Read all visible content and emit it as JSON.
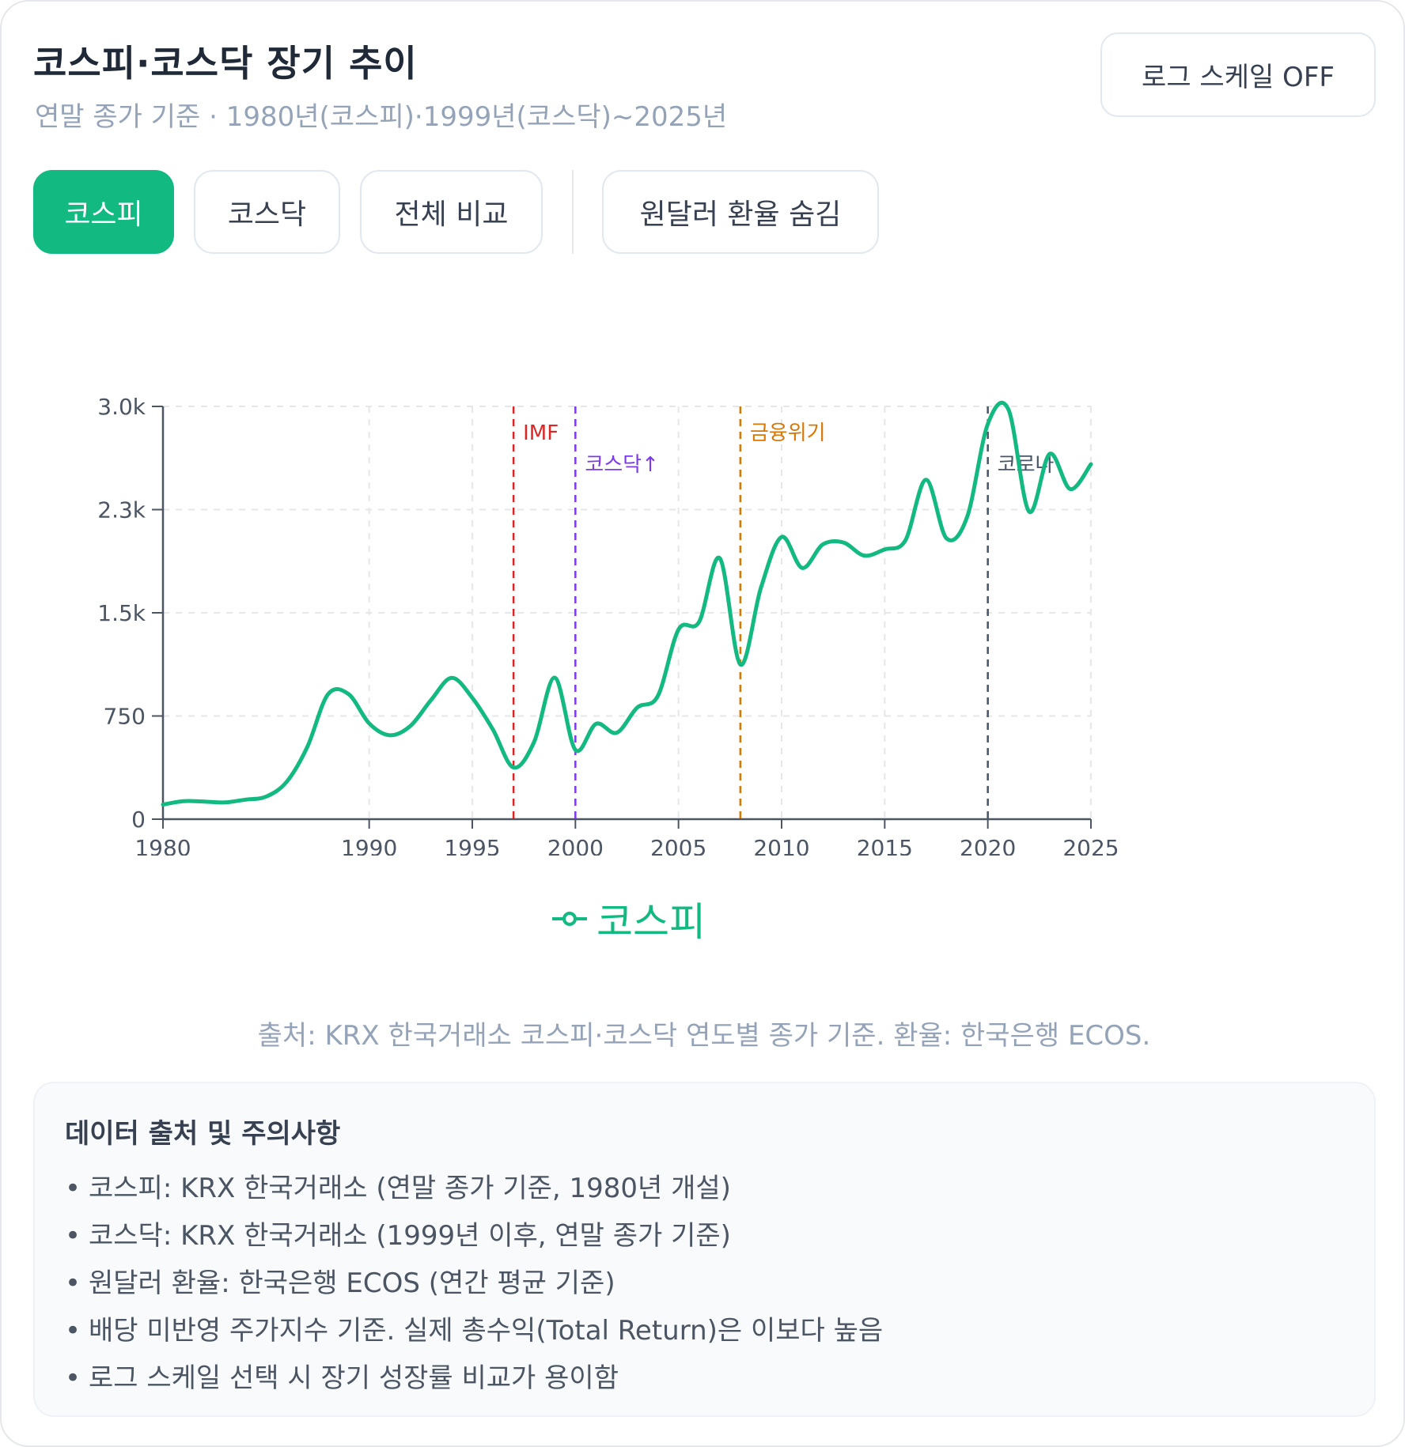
{
  "header": {
    "title": "코스피·코스닥 장기 추이",
    "subtitle": "연말 종가 기준 · 1980년(코스피)·1999년(코스닥)~2025년",
    "log_scale_button": "로그 스케일 OFF"
  },
  "tabs": [
    {
      "label": "코스피",
      "active": true
    },
    {
      "label": "코스닥",
      "active": false
    },
    {
      "label": "전체 비교",
      "active": false
    },
    {
      "label": "원달러 환율 숨김",
      "active": false
    }
  ],
  "colors": {
    "accent": "#12b981",
    "imf": "#dc2626",
    "kosdaq": "#7c3aed",
    "financial_crisis": "#d97706",
    "corona": "#475569"
  },
  "chart_data": {
    "type": "line",
    "x": [
      1980,
      1981,
      1982,
      1983,
      1984,
      1985,
      1986,
      1987,
      1988,
      1989,
      1990,
      1991,
      1992,
      1993,
      1994,
      1995,
      1996,
      1997,
      1998,
      1999,
      2000,
      2001,
      2002,
      2003,
      2004,
      2005,
      2006,
      2007,
      2008,
      2009,
      2010,
      2011,
      2012,
      2013,
      2014,
      2015,
      2016,
      2017,
      2018,
      2019,
      2020,
      2021,
      2022,
      2023,
      2024,
      2025
    ],
    "series": [
      {
        "name": "코스피",
        "values": [
          106,
          131,
          128,
          122,
          142,
          164,
          272,
          526,
          907,
          909,
          696,
          610,
          678,
          866,
          1027,
          882,
          651,
          376,
          562,
          1028,
          504,
          693,
          628,
          811,
          896,
          1379,
          1434,
          1897,
          1124,
          1683,
          2051,
          1826,
          1997,
          2011,
          1916,
          1961,
          2026,
          2467,
          2041,
          2198,
          2873,
          2978,
          2236,
          2655,
          2399,
          2580
        ]
      }
    ],
    "ylim": [
      0,
      3000
    ],
    "yticks": [
      {
        "value": 0,
        "label": "0"
      },
      {
        "value": 750,
        "label": "750"
      },
      {
        "value": 1500,
        "label": "1.5k"
      },
      {
        "value": 2250,
        "label": "2.3k"
      },
      {
        "value": 3000,
        "label": "3.0k"
      }
    ],
    "xticks": [
      1980,
      1990,
      1995,
      2000,
      2005,
      2010,
      2015,
      2020,
      2025
    ],
    "grid": true,
    "legend_position": "bottom-center",
    "events": [
      {
        "x": 1997,
        "label": "IMF",
        "color": "#dc2626",
        "label_row": 0
      },
      {
        "x": 2000,
        "label": "코스닥↑",
        "color": "#7c3aed",
        "label_row": 1
      },
      {
        "x": 2008,
        "label": "금융위기",
        "color": "#d97706",
        "label_row": 0
      },
      {
        "x": 2020,
        "label": "코로나",
        "color": "#475569",
        "label_row": 1
      }
    ]
  },
  "source_text": "출처: KRX 한국거래소 코스피·코스닥 연도별 종가 기준. 환율: 한국은행 ECOS.",
  "notes": {
    "title": "데이터 출처 및 주의사항",
    "items": [
      "코스피: KRX 한국거래소 (연말 종가 기준, 1980년 개설)",
      "코스닥: KRX 한국거래소 (1999년 이후, 연말 종가 기준)",
      "원달러 환율: 한국은행 ECOS (연간 평균 기준)",
      "배당 미반영 주가지수 기준. 실제 총수익(Total Return)은 이보다 높음",
      "로그 스케일 선택 시 장기 성장률 비교가 용이함"
    ]
  }
}
